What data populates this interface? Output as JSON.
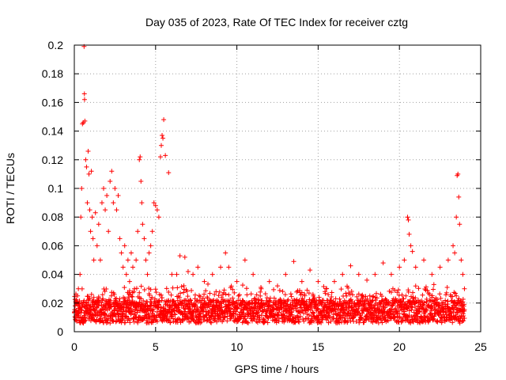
{
  "chart_data": {
    "type": "scatter",
    "title": "Day 035 of 2023, Rate Of TEC Index for receiver cztg",
    "xlabel": "GPS time / hours",
    "ylabel": "ROTI / TECUs",
    "xlim": [
      0,
      25
    ],
    "ylim": [
      0,
      0.2
    ],
    "xticks": [
      "0",
      "5",
      "10",
      "15",
      "20",
      "25"
    ],
    "yticks": [
      "0",
      "0.02",
      "0.04",
      "0.06",
      "0.08",
      "0.1",
      "0.12",
      "0.14",
      "0.16",
      "0.18",
      "0.2"
    ],
    "grid": true,
    "marker": "plus",
    "color": "#ff0000",
    "series": [
      {
        "points": [
          [
            0.05,
            0.018
          ],
          [
            0.1,
            0.02
          ],
          [
            0.15,
            0.012
          ],
          [
            0.2,
            0.025
          ],
          [
            0.25,
            0.03
          ],
          [
            0.3,
            0.015
          ],
          [
            0.35,
            0.04
          ],
          [
            0.4,
            0.08
          ],
          [
            0.45,
            0.1
          ],
          [
            0.5,
            0.145
          ],
          [
            0.55,
            0.146
          ],
          [
            0.6,
            0.199
          ],
          [
            0.62,
            0.166
          ],
          [
            0.63,
            0.162
          ],
          [
            0.65,
            0.147
          ],
          [
            0.7,
            0.12
          ],
          [
            0.75,
            0.115
          ],
          [
            0.8,
            0.09
          ],
          [
            0.85,
            0.126
          ],
          [
            0.9,
            0.11
          ],
          [
            0.95,
            0.085
          ],
          [
            1.0,
            0.07
          ],
          [
            1.05,
            0.112
          ],
          [
            1.1,
            0.08
          ],
          [
            1.15,
            0.065
          ],
          [
            1.2,
            0.05
          ],
          [
            1.3,
            0.083
          ],
          [
            1.4,
            0.06
          ],
          [
            1.5,
            0.075
          ],
          [
            1.6,
            0.05
          ],
          [
            1.7,
            0.09
          ],
          [
            1.8,
            0.1
          ],
          [
            1.9,
            0.085
          ],
          [
            2.0,
            0.095
          ],
          [
            2.1,
            0.07
          ],
          [
            2.2,
            0.105
          ],
          [
            2.3,
            0.112
          ],
          [
            2.4,
            0.09
          ],
          [
            2.5,
            0.1
          ],
          [
            2.6,
            0.085
          ],
          [
            2.7,
            0.095
          ],
          [
            2.8,
            0.065
          ],
          [
            2.9,
            0.055
          ],
          [
            3.0,
            0.045
          ],
          [
            3.1,
            0.06
          ],
          [
            3.2,
            0.04
          ],
          [
            3.3,
            0.05
          ],
          [
            3.4,
            0.035
          ],
          [
            3.5,
            0.055
          ],
          [
            3.6,
            0.045
          ],
          [
            3.7,
            0.03
          ],
          [
            3.8,
            0.05
          ],
          [
            3.9,
            0.07
          ],
          [
            4.0,
            0.12
          ],
          [
            4.05,
            0.122
          ],
          [
            4.1,
            0.105
          ],
          [
            4.15,
            0.09
          ],
          [
            4.2,
            0.075
          ],
          [
            4.3,
            0.065
          ],
          [
            4.4,
            0.05
          ],
          [
            4.5,
            0.04
          ],
          [
            4.6,
            0.055
          ],
          [
            4.7,
            0.06
          ],
          [
            4.8,
            0.07
          ],
          [
            4.9,
            0.09
          ],
          [
            5.0,
            0.088
          ],
          [
            5.1,
            0.085
          ],
          [
            5.2,
            0.08
          ],
          [
            5.3,
            0.122
          ],
          [
            5.35,
            0.13
          ],
          [
            5.4,
            0.137
          ],
          [
            5.45,
            0.135
          ],
          [
            5.5,
            0.148
          ],
          [
            5.6,
            0.123
          ],
          [
            5.8,
            0.111
          ],
          [
            6.0,
            0.04
          ],
          [
            6.3,
            0.04
          ],
          [
            6.5,
            0.053
          ],
          [
            6.8,
            0.052
          ],
          [
            7.0,
            0.042
          ],
          [
            7.3,
            0.04
          ],
          [
            7.6,
            0.045
          ],
          [
            8.0,
            0.035
          ],
          [
            8.5,
            0.04
          ],
          [
            9.0,
            0.045
          ],
          [
            9.3,
            0.055
          ],
          [
            9.5,
            0.045
          ],
          [
            10.0,
            0.035
          ],
          [
            10.5,
            0.05
          ],
          [
            11.0,
            0.04
          ],
          [
            11.5,
            0.03
          ],
          [
            12.0,
            0.035
          ],
          [
            12.5,
            0.032
          ],
          [
            13.0,
            0.04
          ],
          [
            13.5,
            0.049
          ],
          [
            14.0,
            0.035
          ],
          [
            14.5,
            0.043
          ],
          [
            15.0,
            0.035
          ],
          [
            15.5,
            0.03
          ],
          [
            16.0,
            0.035
          ],
          [
            16.5,
            0.04
          ],
          [
            17.0,
            0.046
          ],
          [
            17.5,
            0.04
          ],
          [
            18.0,
            0.036
          ],
          [
            18.5,
            0.04
          ],
          [
            19.0,
            0.048
          ],
          [
            19.5,
            0.04
          ],
          [
            20.0,
            0.045
          ],
          [
            20.3,
            0.05
          ],
          [
            20.5,
            0.08
          ],
          [
            20.55,
            0.078
          ],
          [
            20.6,
            0.068
          ],
          [
            20.7,
            0.06
          ],
          [
            20.8,
            0.056
          ],
          [
            21.0,
            0.045
          ],
          [
            21.5,
            0.05
          ],
          [
            22.0,
            0.04
          ],
          [
            22.5,
            0.045
          ],
          [
            23.0,
            0.05
          ],
          [
            23.3,
            0.06
          ],
          [
            23.4,
            0.055
          ],
          [
            23.5,
            0.08
          ],
          [
            23.55,
            0.109
          ],
          [
            23.6,
            0.11
          ],
          [
            23.65,
            0.094
          ],
          [
            23.7,
            0.075
          ],
          [
            23.8,
            0.05
          ],
          [
            23.9,
            0.04
          ],
          [
            24.0,
            0.03
          ]
        ],
        "band": [
          0.006,
          0.022
        ]
      }
    ]
  }
}
